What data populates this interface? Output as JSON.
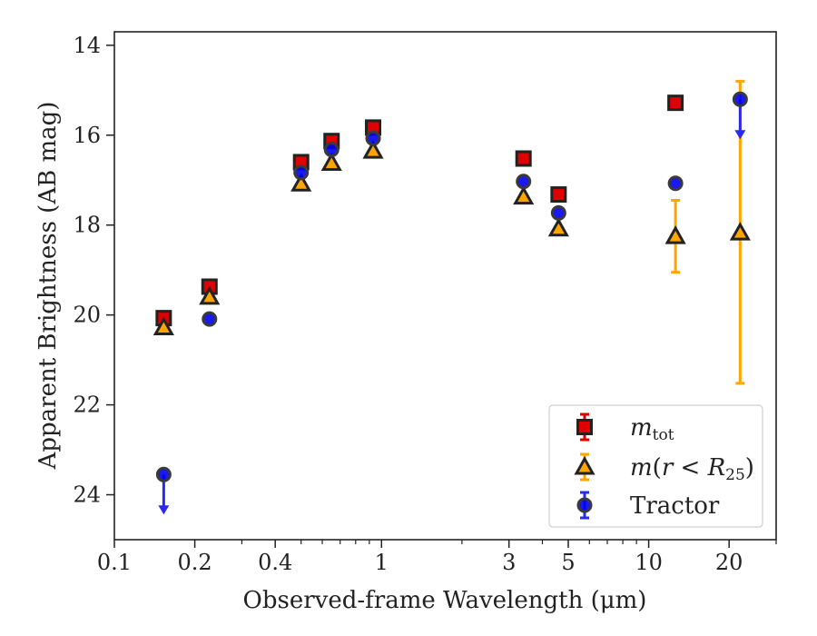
{
  "chart_data": {
    "type": "scatter",
    "xscale": "log",
    "yscale": "linear",
    "yinverted": true,
    "xlim": [
      0.1,
      30
    ],
    "ylim": [
      13.7,
      25.0
    ],
    "xlabel": "Observed-frame Wavelength (μm)",
    "ylabel": "Apparent Brightness (AB mag)",
    "x_ticks": [
      {
        "value": 0.1,
        "label": "0.1"
      },
      {
        "value": 0.2,
        "label": "0.2"
      },
      {
        "value": 0.4,
        "label": "0.4"
      },
      {
        "value": 1,
        "label": "1"
      },
      {
        "value": 3,
        "label": "3"
      },
      {
        "value": 5,
        "label": "5"
      },
      {
        "value": 10,
        "label": "10"
      },
      {
        "value": 20,
        "label": "20"
      }
    ],
    "y_ticks": [
      {
        "value": 14,
        "label": "14"
      },
      {
        "value": 16,
        "label": "16"
      },
      {
        "value": 18,
        "label": "18"
      },
      {
        "value": 20,
        "label": "20"
      },
      {
        "value": 22,
        "label": "22"
      },
      {
        "value": 24,
        "label": "24"
      }
    ],
    "legend_position": "lower right",
    "grid": false,
    "series": [
      {
        "name": "m_tot",
        "marker": "square",
        "color": "#e00000",
        "edge_color": "#222222",
        "errcolor": "#e00000",
        "points": [
          {
            "x": 0.153,
            "y": 20.07
          },
          {
            "x": 0.227,
            "y": 19.37
          },
          {
            "x": 0.5,
            "y": 16.6
          },
          {
            "x": 0.65,
            "y": 16.13
          },
          {
            "x": 0.93,
            "y": 15.83
          },
          {
            "x": 3.4,
            "y": 16.52
          },
          {
            "x": 4.6,
            "y": 17.32
          },
          {
            "x": 12.6,
            "y": 15.28
          }
        ]
      },
      {
        "name": "m(r < R25)",
        "marker": "triangle",
        "color": "#ffa500",
        "edge_color": "#222222",
        "errcolor": "#ffa500",
        "points": [
          {
            "x": 0.153,
            "y": 20.28
          },
          {
            "x": 0.227,
            "y": 19.6
          },
          {
            "x": 0.5,
            "y": 17.08
          },
          {
            "x": 0.65,
            "y": 16.62
          },
          {
            "x": 0.93,
            "y": 16.35
          },
          {
            "x": 3.4,
            "y": 17.37
          },
          {
            "x": 4.6,
            "y": 18.08
          },
          {
            "x": 12.6,
            "y": 18.25,
            "yerr_low": 0.8,
            "yerr_high": 0.8
          },
          {
            "x": 22.0,
            "y": 18.17,
            "yerr_low": 3.37,
            "yerr_high": 3.35
          }
        ]
      },
      {
        "name": "Tractor",
        "marker": "circle",
        "color": "#0000ee",
        "edge_color": "#3a3a3a",
        "errcolor": "#2a2aee",
        "points": [
          {
            "x": 0.153,
            "y": 23.55,
            "upper_limit": true
          },
          {
            "x": 0.227,
            "y": 20.09
          },
          {
            "x": 0.5,
            "y": 16.83
          },
          {
            "x": 0.65,
            "y": 16.32
          },
          {
            "x": 0.93,
            "y": 16.07
          },
          {
            "x": 3.4,
            "y": 17.03
          },
          {
            "x": 4.6,
            "y": 17.73
          },
          {
            "x": 12.6,
            "y": 17.07
          },
          {
            "x": 22.0,
            "y": 15.2,
            "upper_limit": true
          }
        ]
      }
    ]
  }
}
